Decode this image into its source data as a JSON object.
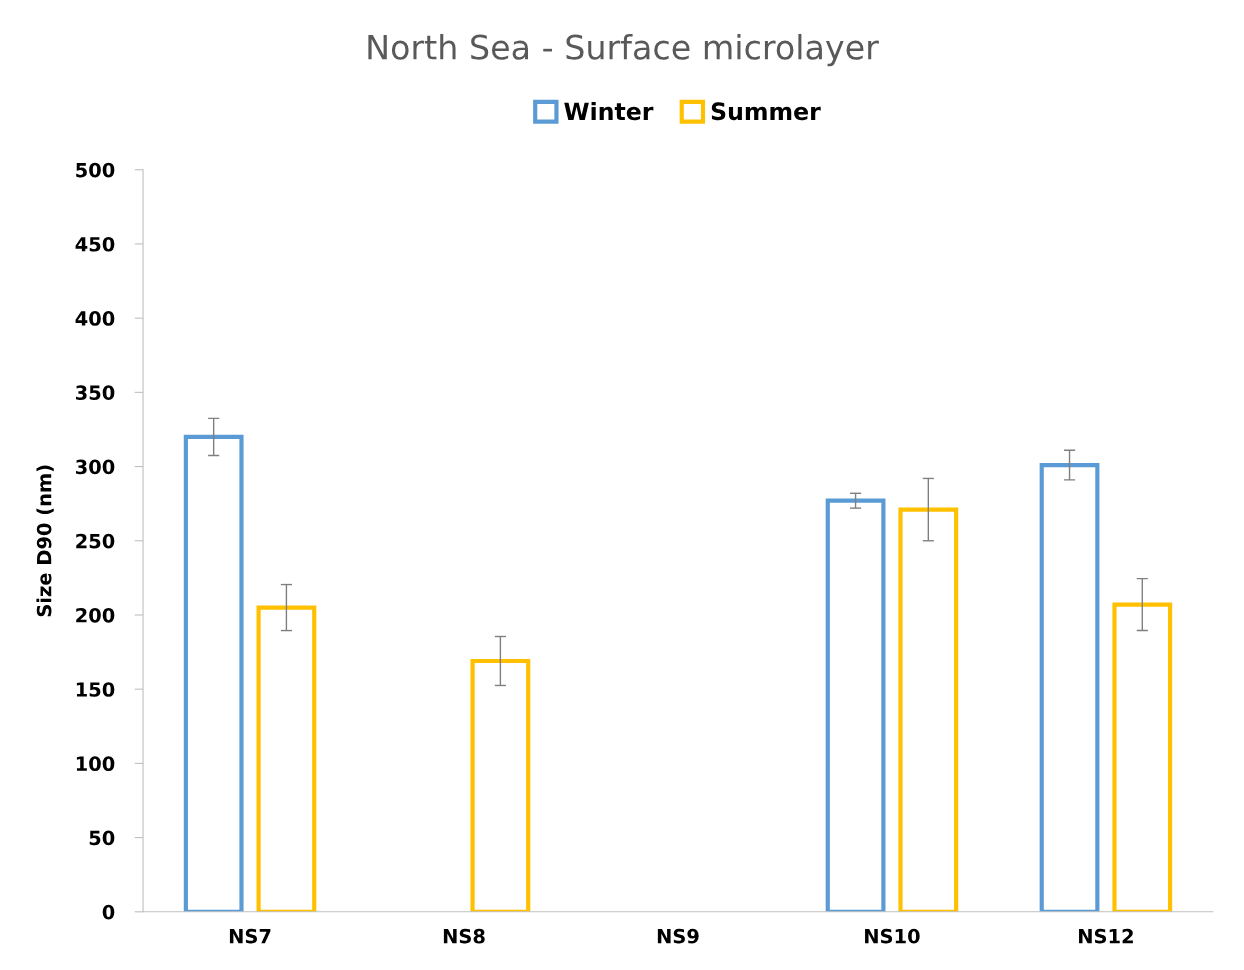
{
  "chart_data": {
    "type": "bar",
    "title": "North Sea - Surface microlayer",
    "ylabel": "Size D90 (nm)",
    "categories": [
      "NS7",
      "NS8",
      "NS9",
      "NS10",
      "NS12"
    ],
    "series": [
      {
        "name": "Winter",
        "color": "#5b9bd5",
        "values": [
          320,
          null,
          null,
          277,
          301
        ],
        "errors": [
          12.5,
          null,
          null,
          5,
          10
        ]
      },
      {
        "name": "Summer",
        "color": "#ffc000",
        "values": [
          205,
          169,
          null,
          271,
          207
        ],
        "errors": [
          15.5,
          16.5,
          null,
          21,
          17.5
        ]
      }
    ],
    "ylim": [
      0,
      500
    ],
    "yticks": [
      0,
      50,
      100,
      150,
      200,
      250,
      300,
      350,
      400,
      450,
      500
    ],
    "grid": false,
    "legend": "top"
  }
}
